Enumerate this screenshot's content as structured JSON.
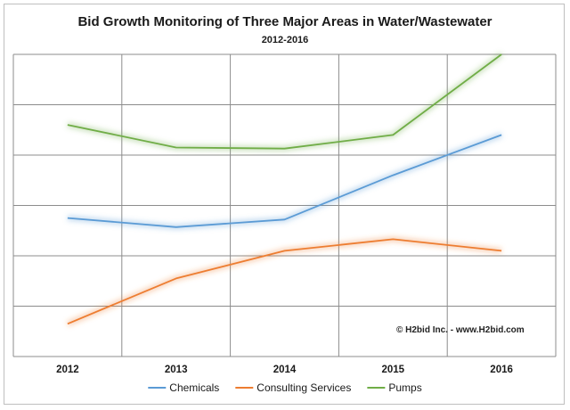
{
  "chart_data": {
    "type": "line",
    "title": "Bid Growth Monitoring of Three Major Areas in Water/Wastewater",
    "subtitle": "2012-2016",
    "categories": [
      "2012",
      "2013",
      "2014",
      "2015",
      "2016"
    ],
    "series": [
      {
        "name": "Chemicals",
        "color": "#5b9bd5",
        "values": [
          2.75,
          2.57,
          2.72,
          3.6,
          4.4
        ]
      },
      {
        "name": "Consulting Services",
        "color": "#ed7d31",
        "values": [
          0.65,
          1.55,
          2.1,
          2.33,
          2.1
        ]
      },
      {
        "name": "Pumps",
        "color": "#70ad47",
        "values": [
          4.6,
          4.15,
          4.13,
          4.4,
          6.0
        ]
      }
    ],
    "ylim": [
      0,
      6
    ],
    "grid": true,
    "y_tick_labels": false,
    "legend_position": "bottom",
    "annotation": "© H2bid Inc. - www.H2bid.com"
  }
}
